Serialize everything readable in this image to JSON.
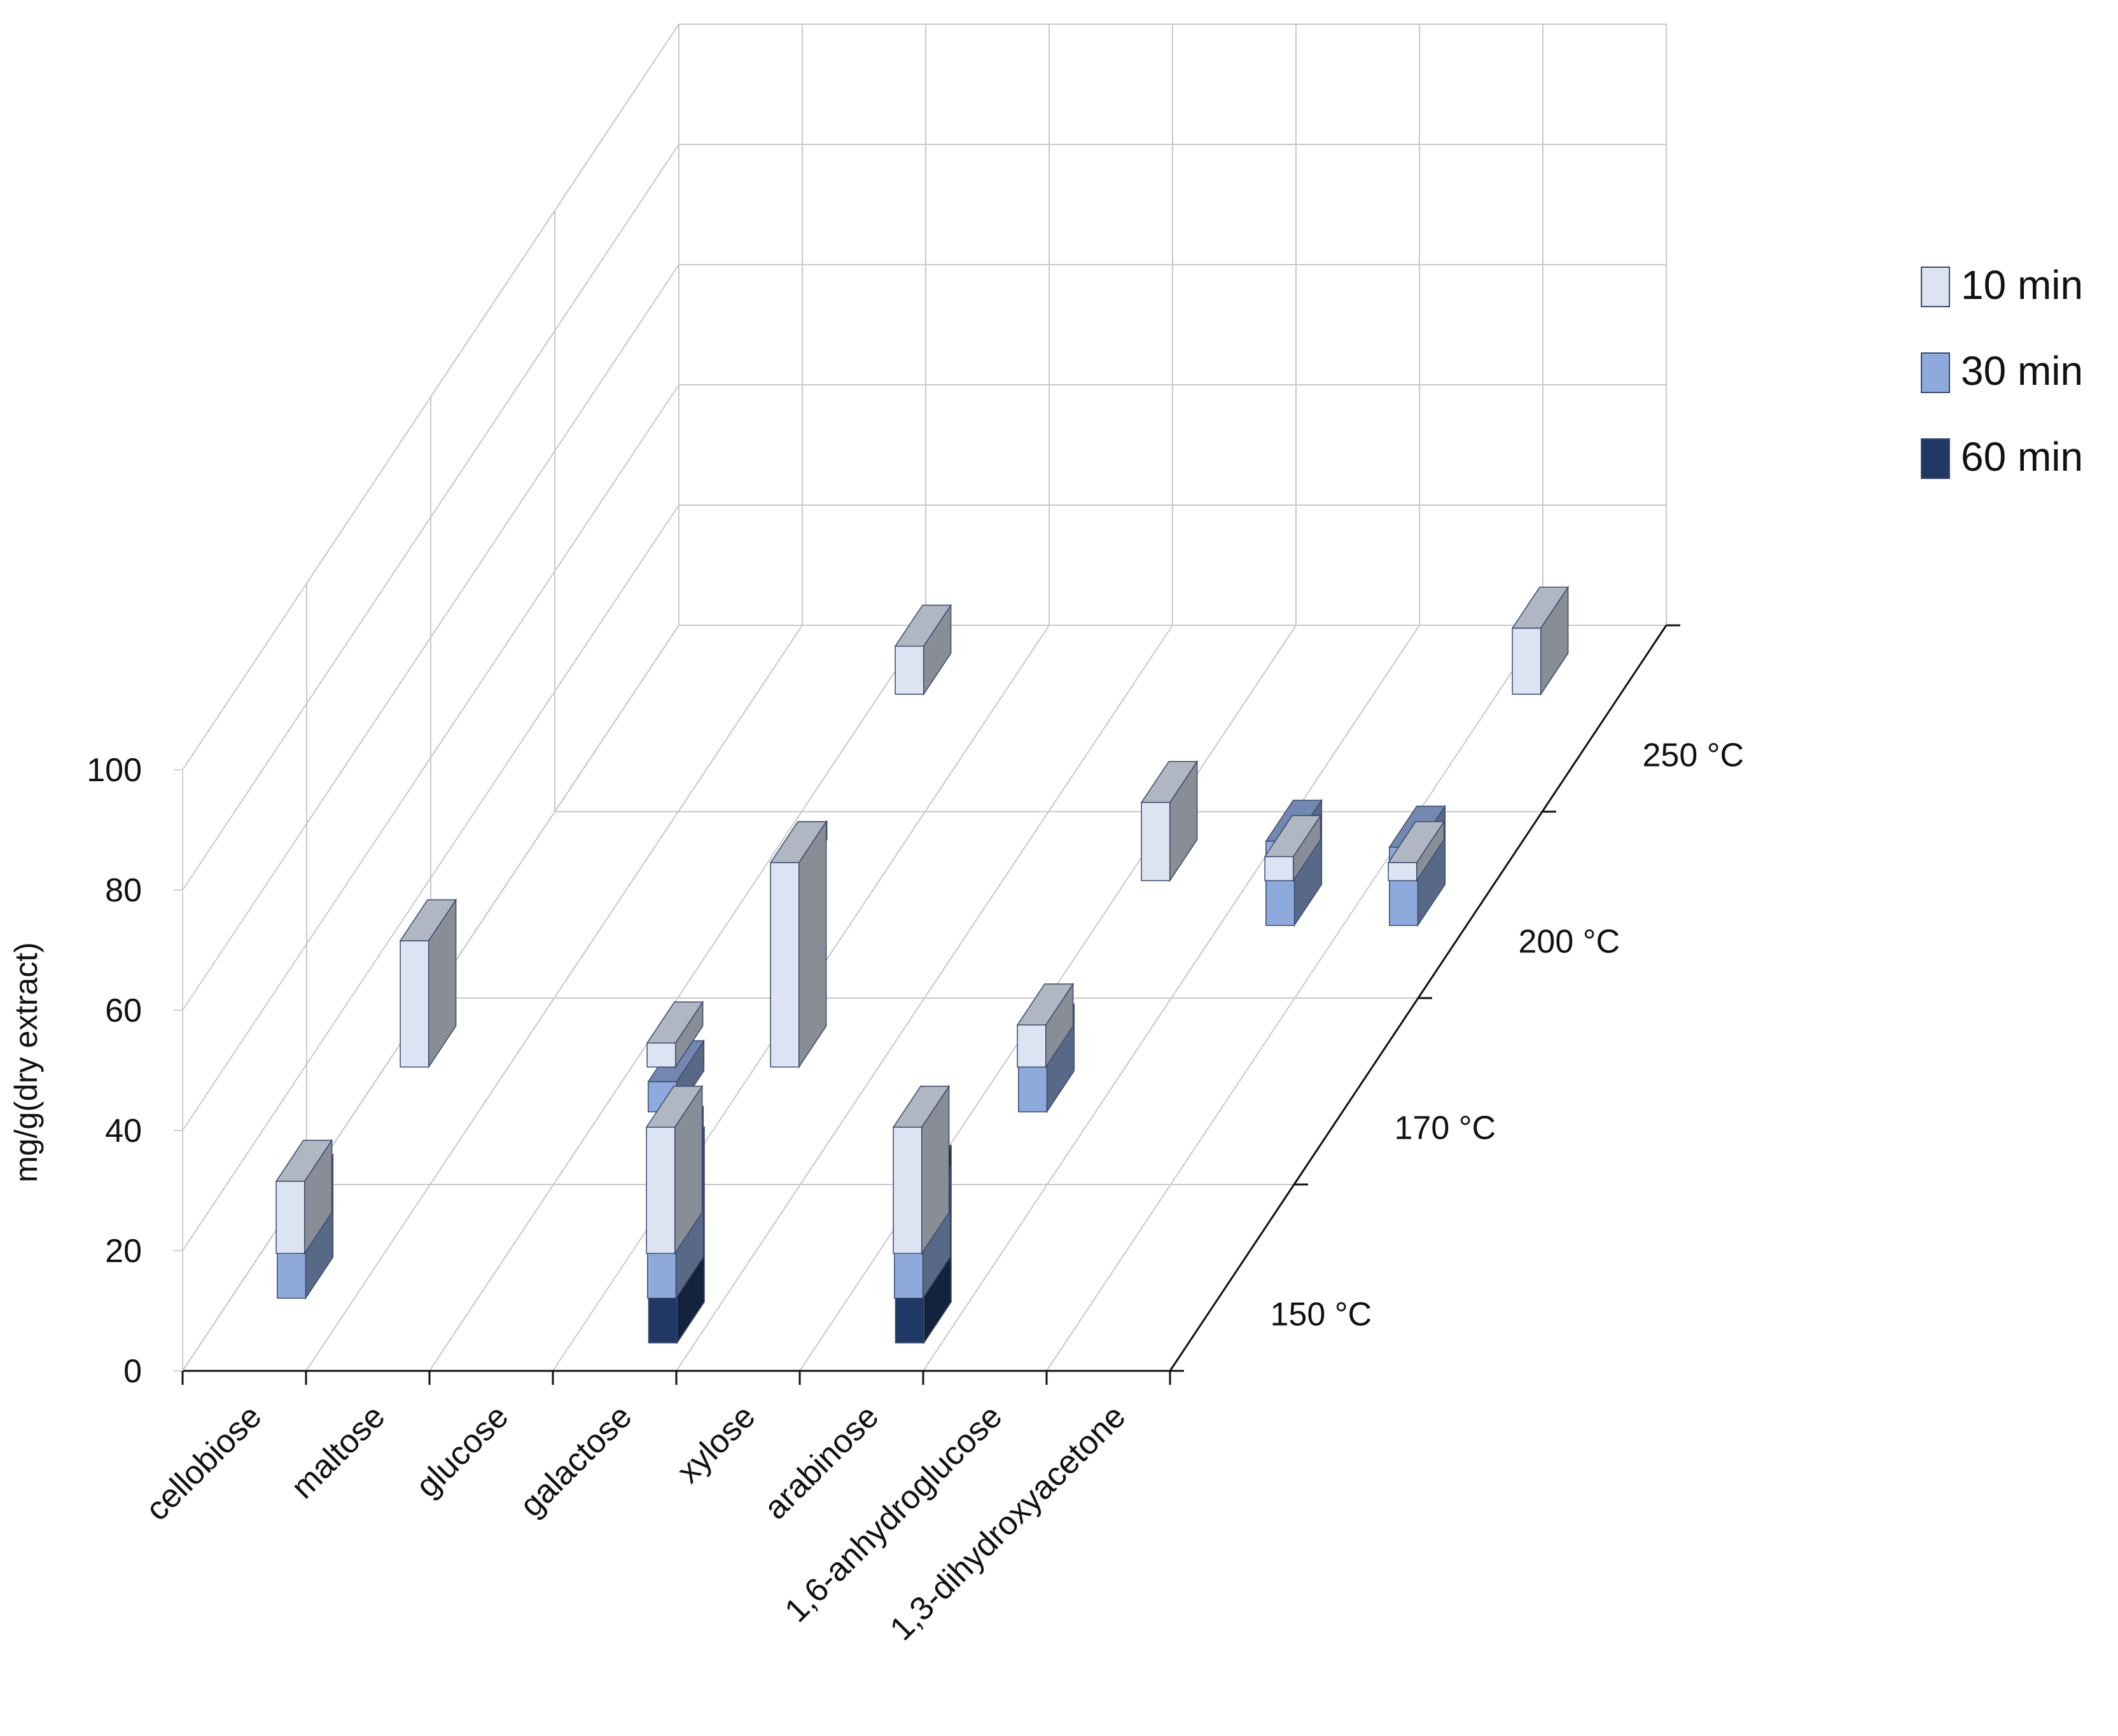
{
  "chart_data": {
    "type": "bar",
    "subtype": "3d-clustered-column",
    "ylabel": "mg/g(dry extract)",
    "ylim": [
      0,
      100
    ],
    "yticks": [
      0,
      20,
      40,
      60,
      80,
      100
    ],
    "categories": [
      "cellobiose",
      "maltose",
      "glucose",
      "galactose",
      "xylose",
      "arabinose",
      "1,6-anhydroglucose",
      "1,3-dihydroxyacetone"
    ],
    "depth_categories": [
      "150 °C",
      "170 °C",
      "200 °C",
      "250 °C"
    ],
    "series": [
      {
        "name": "10 min",
        "color": "#dce3f2",
        "values": [
          [
            12,
            21,
            0,
            0
          ],
          [
            0,
            0,
            0,
            0
          ],
          [
            0,
            4,
            3,
            8
          ],
          [
            21,
            34,
            0,
            0
          ],
          [
            0,
            0,
            0,
            0
          ],
          [
            21,
            7,
            13,
            0
          ],
          [
            0,
            0,
            4,
            0
          ],
          [
            0,
            0,
            3,
            11
          ]
        ]
      },
      {
        "name": "30 min",
        "color": "#8eaadc",
        "values": [
          [
            17,
            0,
            0,
            0
          ],
          [
            0,
            0,
            0,
            0
          ],
          [
            0,
            5,
            0,
            0
          ],
          [
            25,
            0,
            0,
            0
          ],
          [
            0,
            0,
            0,
            0
          ],
          [
            15,
            11,
            0,
            0
          ],
          [
            0,
            0,
            14,
            0
          ],
          [
            0,
            0,
            13,
            0
          ]
        ]
      },
      {
        "name": "60 min",
        "color": "#1f3864",
        "values": [
          [
            0,
            0,
            0,
            0
          ],
          [
            0,
            0,
            0,
            0
          ],
          [
            0,
            0,
            0,
            0
          ],
          [
            29,
            0,
            0,
            0
          ],
          [
            0,
            0,
            0,
            0
          ],
          [
            26,
            0,
            0,
            0
          ],
          [
            0,
            0,
            0,
            0
          ],
          [
            0,
            0,
            0,
            0
          ]
        ]
      }
    ],
    "grid": true,
    "legend_position": "right"
  }
}
